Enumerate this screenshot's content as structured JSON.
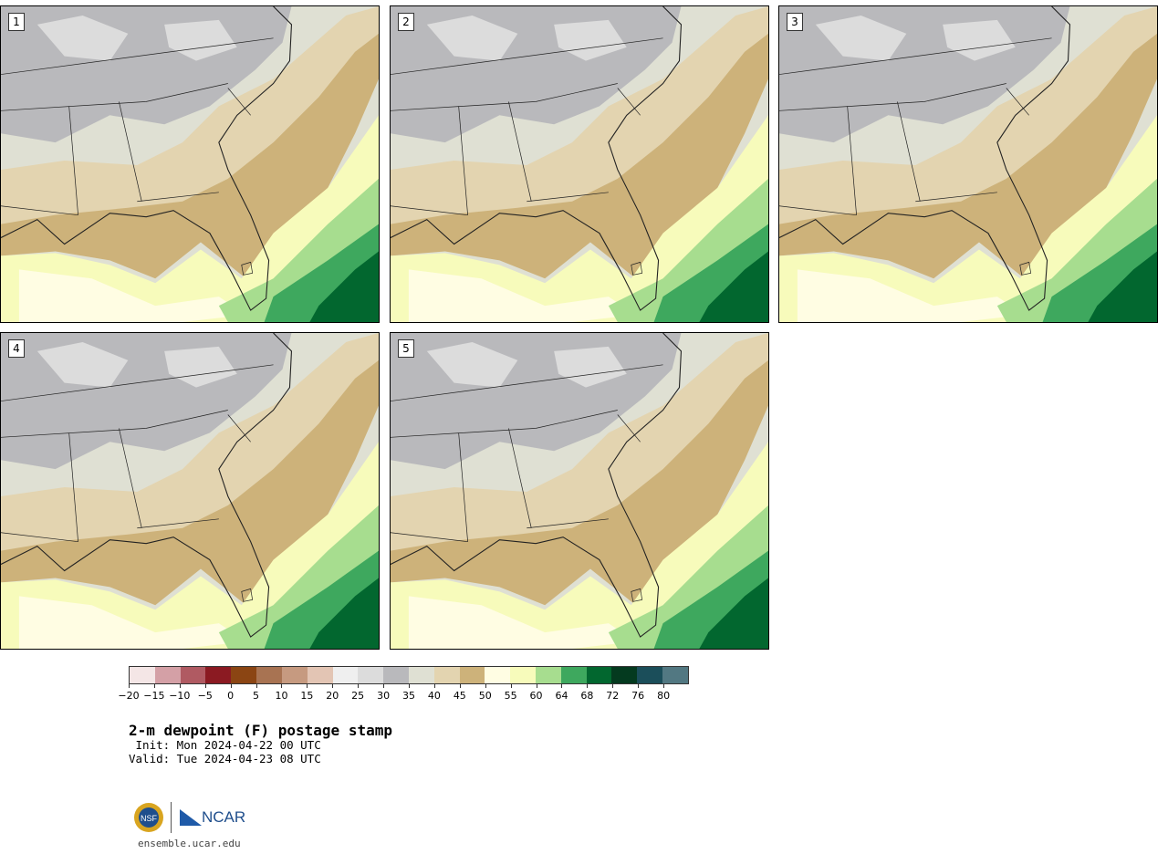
{
  "panels": [
    {
      "label": "1"
    },
    {
      "label": "2"
    },
    {
      "label": "3"
    },
    {
      "label": "4"
    },
    {
      "label": "5"
    }
  ],
  "colorbar": {
    "colors": [
      "#f4e6e6",
      "#d4a0a6",
      "#b05a62",
      "#8b1a22",
      "#8b4513",
      "#a87352",
      "#c69a80",
      "#e3c5b4",
      "#efefef",
      "#dcdcdc",
      "#b9b9bc",
      "#dfe0d3",
      "#e3d4b0",
      "#cdb27a",
      "#fffde3",
      "#f7fbbb",
      "#a7dd8f",
      "#3ea85e",
      "#02672f",
      "#043a1f",
      "#1b4e5a",
      "#527882"
    ],
    "ticks": [
      "−20",
      "−15",
      "−10",
      "−5",
      "0",
      "5",
      "10",
      "15",
      "20",
      "25",
      "30",
      "35",
      "40",
      "45",
      "50",
      "55",
      "60",
      "64",
      "68",
      "72",
      "76",
      "80"
    ]
  },
  "title": "2-m dewpoint (F) postage stamp",
  "init": " Init: Mon 2024-04-22 00 UTC",
  "valid": "Valid: Tue 2024-04-23 08 UTC",
  "url": "ensemble.ucar.edu",
  "logos": {
    "nsf_icon": "nsf-logo",
    "ncar_text": "NCAR"
  }
}
